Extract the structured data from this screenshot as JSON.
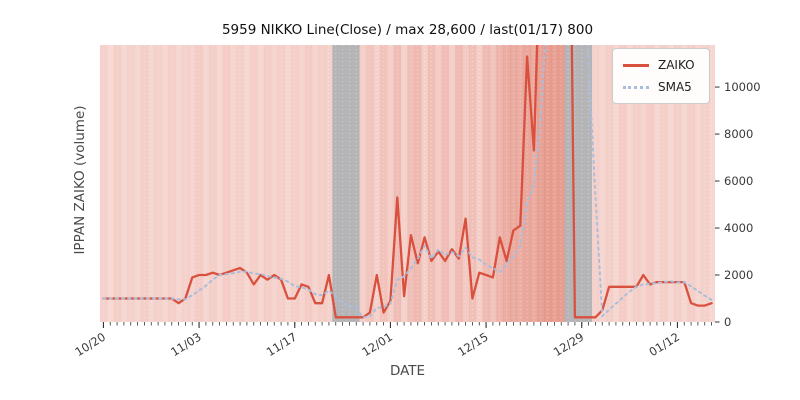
{
  "title": "5959 NIKKO Line(Close) / max 28,600 / last(01/17) 800",
  "xlabel": "DATE",
  "ylabel": "IPPAN ZAIKO (volume)",
  "legend": {
    "items": [
      {
        "label": "ZAIKO"
      },
      {
        "label": "SMA5"
      }
    ]
  },
  "colors": {
    "zaiko_line": "#d9513e",
    "sma5_line": "#a9bedd",
    "plot_bg": "#f8ddd8",
    "stripe": "#d96a58",
    "gray_band": "#a9aeb3",
    "grid_dot": "#ffffff",
    "tick_text": "#3a3a3a",
    "tick_mark": "#333333"
  },
  "chart_data": {
    "type": "line",
    "title": "5959 NIKKO Line(Close) / max 28,600 / last(01/17) 800",
    "xlabel": "DATE",
    "ylabel": "IPPAN ZAIKO (volume)",
    "ylim": [
      0,
      11790
    ],
    "yticks": [
      0,
      2000,
      4000,
      6000,
      8000,
      10000
    ],
    "n_points": 90,
    "xticks": [
      {
        "label": "10/20",
        "index": 0
      },
      {
        "label": "11/03",
        "index": 14
      },
      {
        "label": "11/17",
        "index": 28
      },
      {
        "label": "12/01",
        "index": 42
      },
      {
        "label": "12/15",
        "index": 56
      },
      {
        "label": "12/29",
        "index": 70
      },
      {
        "label": "01/12",
        "index": 84
      }
    ],
    "max_value": 28600,
    "last": {
      "date": "01/17",
      "value": 800
    },
    "series": [
      {
        "name": "ZAIKO",
        "values": [
          1000,
          1000,
          1000,
          1000,
          1000,
          1000,
          1000,
          1000,
          1000,
          1000,
          1000,
          800,
          1000,
          1900,
          2000,
          2000,
          2100,
          2000,
          2100,
          2200,
          2300,
          2100,
          1600,
          2000,
          1800,
          2000,
          1800,
          1000,
          1000,
          1600,
          1500,
          800,
          800,
          2000,
          200,
          200,
          200,
          200,
          200,
          400,
          2000,
          400,
          900,
          5300,
          1100,
          3700,
          2500,
          3600,
          2600,
          3000,
          2600,
          3100,
          2700,
          4400,
          1000,
          2100,
          2000,
          1900,
          3600,
          2600,
          3900,
          4100,
          11300,
          7300,
          17000,
          28600,
          24000,
          28600,
          26000,
          200,
          200,
          200,
          200,
          500,
          1500,
          1500,
          1500,
          1500,
          1500,
          2000,
          1600,
          1700,
          1700,
          1700,
          1700,
          1700,
          800,
          700,
          700,
          800
        ]
      },
      {
        "name": "SMA5",
        "window": 5,
        "derived_from": "ZAIKO"
      }
    ],
    "background": {
      "day_shades": [
        0.1,
        0.04,
        0.12,
        0.05,
        0.1,
        0.06,
        0.12,
        0.05,
        0.1,
        0.06,
        0.12,
        0.05,
        0.1,
        0.08,
        0.14,
        0.06,
        0.12,
        0.06,
        0.14,
        0.07,
        0.12,
        0.06,
        0.13,
        0.06,
        0.12,
        0.07,
        0.13,
        0.06,
        0.12,
        0.07,
        0.14,
        0.07,
        0.12,
        0.1,
        0,
        0,
        0,
        0,
        0.12,
        0.2,
        0.1,
        0.22,
        0.12,
        0.28,
        0.1,
        0.25,
        0.3,
        0.12,
        0.26,
        0.14,
        0.28,
        0.12,
        0.3,
        0.16,
        0.24,
        0.12,
        0.3,
        0.22,
        0.34,
        0.4,
        0.44,
        0.4,
        0.46,
        0.44,
        0.52,
        0.55,
        0.52,
        0.55,
        0,
        0,
        0,
        0,
        0.1,
        0.05,
        0.12,
        0.06,
        0.14,
        0.06,
        0.12,
        0.08,
        0.14,
        0.06,
        0.12,
        0.06,
        0.12,
        0.06,
        0.12,
        0.05,
        0.1,
        0.06
      ],
      "gray_bands": [
        {
          "from": 34,
          "to": 38
        },
        {
          "from": 68,
          "to": 72
        }
      ]
    }
  }
}
